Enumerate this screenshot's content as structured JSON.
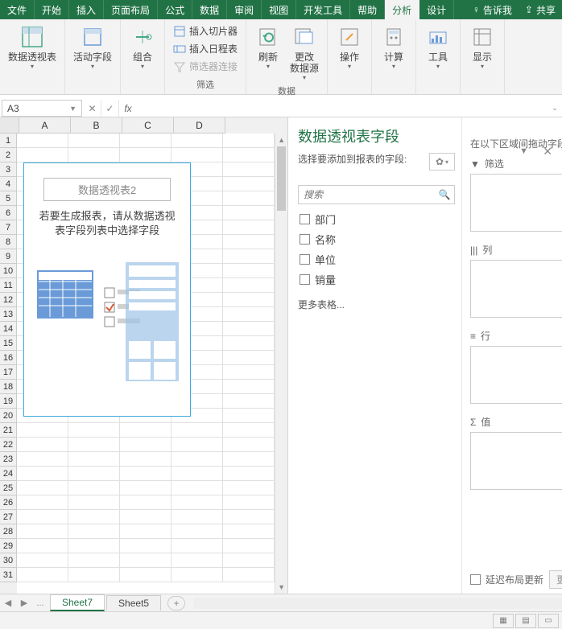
{
  "ribbon": {
    "tabs": [
      "文件",
      "开始",
      "插入",
      "页面布局",
      "公式",
      "数据",
      "审阅",
      "视图",
      "开发工具",
      "帮助",
      "分析",
      "设计"
    ],
    "active_tab": "分析",
    "tell_me": "告诉我",
    "share": "共享",
    "groups": {
      "pivot_table": "数据透视表",
      "active_field": "活动字段",
      "group": "组合",
      "filter": "筛选",
      "data": "数据",
      "actions": "操作",
      "calc": "计算",
      "tools": "工具",
      "show": "显示"
    },
    "buttons": {
      "insert_slicer": "插入切片器",
      "insert_timeline": "插入日程表",
      "filter_conn": "筛选器连接",
      "refresh": "刷新",
      "change_source": "更改\n数据源"
    }
  },
  "formula_bar": {
    "name_box": "A3",
    "fx": "fx"
  },
  "columns": [
    "A",
    "B",
    "C",
    "D"
  ],
  "rows": [
    "1",
    "2",
    "3",
    "4",
    "5",
    "6",
    "7",
    "8",
    "9",
    "10",
    "11",
    "12",
    "13",
    "14",
    "15",
    "16",
    "17",
    "18",
    "19",
    "20",
    "21",
    "22",
    "23",
    "24",
    "25",
    "26",
    "27",
    "28",
    "29",
    "30",
    "31"
  ],
  "pivot_placeholder": {
    "title": "数据透视表2",
    "hint1": "若要生成报表，请从数据透视",
    "hint2": "表字段列表中选择字段"
  },
  "field_pane": {
    "title": "数据透视表字段",
    "choose_text": "选择要添加到报表的字段:",
    "search_placeholder": "搜索",
    "fields": [
      "部门",
      "名称",
      "单位",
      "销量"
    ],
    "more_tables": "更多表格...",
    "drag_hint": "在以下区域间拖动字段:",
    "zones": {
      "filter": "筛选",
      "columns": "列",
      "rows": "行",
      "values": "值"
    },
    "defer": "延迟布局更新",
    "update": "更新"
  },
  "sheet_tabs": {
    "active": "Sheet7",
    "other": "Sheet5",
    "ellipsis": "..."
  },
  "colors": {
    "theme": "#217346",
    "border": "#d4d4d4"
  }
}
